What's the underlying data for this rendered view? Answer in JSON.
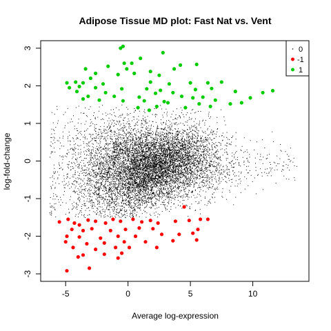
{
  "chart_data": {
    "type": "scatter",
    "title": "Adipose Tissue MD plot: Fast Nat vs. Vent",
    "xlabel": "Average log-expression",
    "ylabel": "log-fold-change",
    "xlim": [
      -7,
      14.5
    ],
    "ylim": [
      -3.2,
      3.2
    ],
    "x_ticks": [
      -5,
      0,
      5,
      10
    ],
    "y_ticks": [
      -3,
      -2,
      -1,
      0,
      1,
      2,
      3
    ],
    "grid": false,
    "legend_position": "top-right",
    "legend": [
      {
        "label": "0",
        "color": "#000000",
        "marker": "dot"
      },
      {
        "label": "-1",
        "color": "#ff0000",
        "marker": "circle"
      },
      {
        "label": "1",
        "color": "#00cd00",
        "marker": "circle"
      }
    ],
    "colors": {
      "0": "#000000",
      "-1": "#ff0000",
      "1": "#00cd00"
    },
    "series": [
      {
        "name": "1",
        "color": "#00cd00",
        "points": [
          [
            -0.6,
            3.0
          ],
          [
            -0.4,
            3.05
          ],
          [
            2.8,
            2.88
          ],
          [
            1.0,
            2.73
          ],
          [
            0.3,
            2.6
          ],
          [
            -0.3,
            2.6
          ],
          [
            -1.6,
            2.52
          ],
          [
            -3.4,
            2.45
          ],
          [
            -0.1,
            2.45
          ],
          [
            3.7,
            2.45
          ],
          [
            4.2,
            2.55
          ],
          [
            5.5,
            2.57
          ],
          [
            1.8,
            2.38
          ],
          [
            0.5,
            2.33
          ],
          [
            2.5,
            2.28
          ],
          [
            -2.6,
            2.33
          ],
          [
            -0.8,
            2.3
          ],
          [
            -3.0,
            2.2
          ],
          [
            -4.9,
            2.08
          ],
          [
            -4.2,
            2.1
          ],
          [
            -3.6,
            2.08
          ],
          [
            -2.0,
            2.05
          ],
          [
            1.8,
            2.1
          ],
          [
            3.3,
            2.05
          ],
          [
            5.0,
            2.08
          ],
          [
            6.4,
            2.08
          ],
          [
            7.5,
            2.1
          ],
          [
            -4.7,
            1.95
          ],
          [
            -3.9,
            1.98
          ],
          [
            -2.6,
            1.95
          ],
          [
            -0.5,
            1.92
          ],
          [
            1.5,
            1.92
          ],
          [
            2.6,
            1.88
          ],
          [
            5.4,
            1.9
          ],
          [
            6.7,
            1.93
          ],
          [
            -4.1,
            1.85
          ],
          [
            -1.8,
            1.82
          ],
          [
            2.2,
            1.8
          ],
          [
            3.6,
            1.82
          ],
          [
            8.6,
            1.85
          ],
          [
            11.6,
            1.87
          ],
          [
            10.8,
            1.82
          ],
          [
            -3.2,
            1.72
          ],
          [
            -1.1,
            1.72
          ],
          [
            0.9,
            1.7
          ],
          [
            4.3,
            1.72
          ],
          [
            5.2,
            1.68
          ],
          [
            6.0,
            1.7
          ],
          [
            -3.6,
            1.65
          ],
          [
            -2.3,
            1.62
          ],
          [
            -0.4,
            1.6
          ],
          [
            1.3,
            1.6
          ],
          [
            2.9,
            1.58
          ],
          [
            7.0,
            1.62
          ],
          [
            9.8,
            1.68
          ],
          [
            9.1,
            1.55
          ],
          [
            3.2,
            1.55
          ],
          [
            5.7,
            1.52
          ],
          [
            8.2,
            1.52
          ],
          [
            6.6,
            1.45
          ],
          [
            0.8,
            1.42
          ],
          [
            2.3,
            1.45
          ],
          [
            4.6,
            1.42
          ],
          [
            1.7,
            1.35
          ]
        ]
      },
      {
        "name": "-1",
        "color": "#ff0000",
        "points": [
          [
            -5.5,
            -1.62
          ],
          [
            -4.8,
            -1.55
          ],
          [
            -4.3,
            -1.65
          ],
          [
            -3.9,
            -1.7
          ],
          [
            -3.2,
            -1.57
          ],
          [
            -2.6,
            -1.6
          ],
          [
            -1.8,
            -1.65
          ],
          [
            -1.2,
            -1.55
          ],
          [
            -0.6,
            -1.6
          ],
          [
            0.4,
            -1.55
          ],
          [
            1.1,
            -1.62
          ],
          [
            1.8,
            -1.58
          ],
          [
            2.4,
            -1.65
          ],
          [
            3.8,
            -1.6
          ],
          [
            4.9,
            -1.58
          ],
          [
            5.8,
            -1.55
          ],
          [
            6.4,
            -1.55
          ],
          [
            4.5,
            -1.22
          ],
          [
            -4.5,
            -1.82
          ],
          [
            -3.6,
            -1.85
          ],
          [
            -2.9,
            -1.8
          ],
          [
            -1.4,
            -1.85
          ],
          [
            -0.2,
            -1.82
          ],
          [
            0.9,
            -1.78
          ],
          [
            2.0,
            -1.8
          ],
          [
            5.6,
            -1.82
          ],
          [
            -4.9,
            -2.0
          ],
          [
            -3.9,
            -2.02
          ],
          [
            -2.2,
            -2.05
          ],
          [
            -0.8,
            -2.0
          ],
          [
            0.6,
            -2.0
          ],
          [
            2.7,
            -1.95
          ],
          [
            4.1,
            -1.95
          ],
          [
            5.2,
            -1.92
          ],
          [
            -5.0,
            -2.15
          ],
          [
            -3.3,
            -2.2
          ],
          [
            -1.9,
            -2.18
          ],
          [
            -0.3,
            -2.15
          ],
          [
            1.4,
            -2.15
          ],
          [
            3.6,
            -2.12
          ],
          [
            5.5,
            -2.1
          ],
          [
            -4.4,
            -2.3
          ],
          [
            -2.6,
            -2.35
          ],
          [
            -1.0,
            -2.3
          ],
          [
            0.1,
            -2.3
          ],
          [
            2.3,
            -2.3
          ],
          [
            -3.6,
            -2.5
          ],
          [
            -1.9,
            -2.48
          ],
          [
            -0.5,
            -2.45
          ],
          [
            -4.0,
            -2.55
          ],
          [
            -0.8,
            -2.58
          ],
          [
            -3.1,
            -2.85
          ],
          [
            -4.9,
            -2.92
          ]
        ]
      }
    ]
  }
}
